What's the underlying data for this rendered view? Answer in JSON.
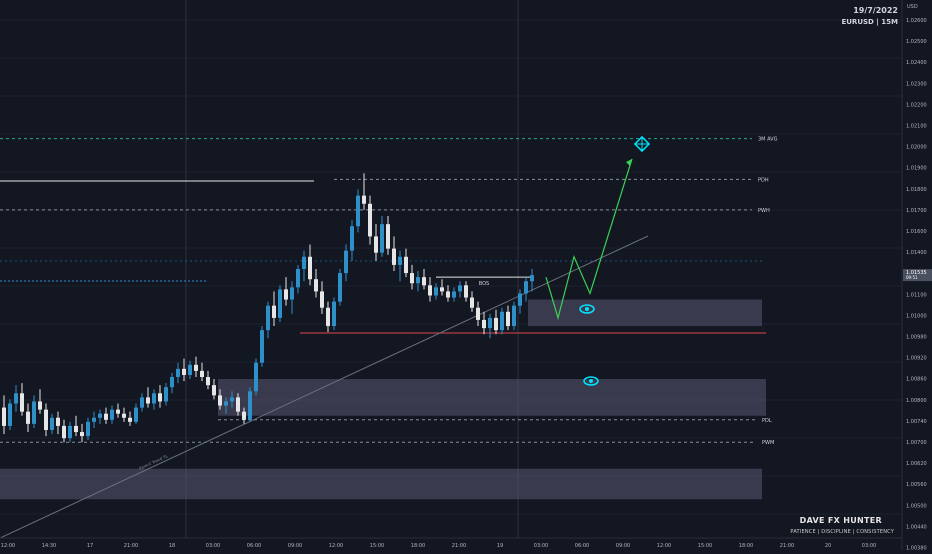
{
  "header": {
    "date": "19/7/2022",
    "symbol_line": "EURUSD | 15M"
  },
  "branding": {
    "name": "DAVE FX HUNTER",
    "tagline": "PATIENCE | DISCIPLINE | CONSISTENCY"
  },
  "colors": {
    "background": "#131722",
    "bull_candle": "#2f8fc9",
    "bear_candle": "#e6e6e6",
    "zone_fill": "#5b5875",
    "projection_line": "#39d353",
    "level_line": "#8a8f9c",
    "cyan_level": "#26a69a",
    "red_level": "#e0454a",
    "eye_icon": "#00e5ff",
    "target_icon": "#00e5ff"
  },
  "icons": {
    "zone_marker": "eye-icon",
    "target_marker": "crosshair-icon"
  },
  "chart_data": {
    "type": "candlestick",
    "symbol": "EURUSD",
    "timeframe": "15M",
    "y_axis_label": "USD",
    "y_range": [
      1.0024,
      1.0288
    ],
    "y_ticks": [
      "1.02600",
      "1.02500",
      "1.02400",
      "1.02300",
      "1.02200",
      "1.02100",
      "1.02000",
      "1.01900",
      "1.01800",
      "1.01700",
      "1.01600",
      "1.01400",
      "1.01300",
      "1.01100",
      "1.01000",
      "1.00980",
      "1.00920",
      "1.00860",
      "1.00800",
      "1.00740",
      "1.00700",
      "1.00620",
      "1.00560",
      "1.00500",
      "1.00440",
      "1.00380",
      "1.00260"
    ],
    "x_ticks": [
      "12:00",
      "14:30",
      "17",
      "21:00",
      "18",
      "03:00",
      "06:00",
      "09:00",
      "12:00",
      "15:00",
      "18:00",
      "21:00",
      "19",
      "03:00",
      "06:00",
      "09:00",
      "12:00",
      "15:00",
      "18:00",
      "21:00",
      "20",
      "03:00"
    ],
    "current_price": {
      "value": "1.01535",
      "countdown": "09:51"
    },
    "candles_ohlc": [
      [
        1.0088,
        1.0094,
        1.0075,
        1.0079
      ],
      [
        1.0079,
        1.0092,
        1.0077,
        1.009
      ],
      [
        1.009,
        1.0099,
        1.0086,
        1.0095
      ],
      [
        1.0095,
        1.01,
        1.0084,
        1.0086
      ],
      [
        1.0086,
        1.009,
        1.0076,
        1.008
      ],
      [
        1.008,
        1.0094,
        1.0078,
        1.0091
      ],
      [
        1.0091,
        1.0097,
        1.0085,
        1.0087
      ],
      [
        1.0087,
        1.009,
        1.0074,
        1.0077
      ],
      [
        1.0077,
        1.0085,
        1.0075,
        1.0083
      ],
      [
        1.0083,
        1.0086,
        1.0075,
        1.0079
      ],
      [
        1.0079,
        1.0082,
        1.0071,
        1.0073
      ],
      [
        1.0073,
        1.0081,
        1.0071,
        1.0079
      ],
      [
        1.0079,
        1.0084,
        1.0074,
        1.0076
      ],
      [
        1.0076,
        1.008,
        1.0071,
        1.0074
      ],
      [
        1.0074,
        1.0083,
        1.0072,
        1.0081
      ],
      [
        1.0081,
        1.0086,
        1.0078,
        1.0083
      ],
      [
        1.0083,
        1.0087,
        1.008,
        1.0085
      ],
      [
        1.0085,
        1.0088,
        1.008,
        1.0082
      ],
      [
        1.0082,
        1.0089,
        1.008,
        1.0087
      ],
      [
        1.0087,
        1.009,
        1.0083,
        1.0085
      ],
      [
        1.0085,
        1.0088,
        1.0081,
        1.0083
      ],
      [
        1.0083,
        1.0086,
        1.0079,
        1.0081
      ],
      [
        1.0081,
        1.009,
        1.008,
        1.0088
      ],
      [
        1.0088,
        1.0095,
        1.0086,
        1.0093
      ],
      [
        1.0093,
        1.0098,
        1.0088,
        1.009
      ],
      [
        1.009,
        1.0097,
        1.0087,
        1.0095
      ],
      [
        1.0095,
        1.0099,
        1.0088,
        1.0091
      ],
      [
        1.0091,
        1.01,
        1.0089,
        1.0098
      ],
      [
        1.0098,
        1.0105,
        1.0095,
        1.0103
      ],
      [
        1.0103,
        1.011,
        1.01,
        1.0107
      ],
      [
        1.0107,
        1.0112,
        1.0101,
        1.0104
      ],
      [
        1.0104,
        1.0111,
        1.0102,
        1.0109
      ],
      [
        1.0109,
        1.0113,
        1.0103,
        1.0106
      ],
      [
        1.0106,
        1.011,
        1.0101,
        1.0103
      ],
      [
        1.0103,
        1.0106,
        1.0097,
        1.0099
      ],
      [
        1.0099,
        1.0102,
        1.0092,
        1.0094
      ],
      [
        1.0094,
        1.0097,
        1.0087,
        1.0089
      ],
      [
        1.0089,
        1.0093,
        1.0085,
        1.0091
      ],
      [
        1.0091,
        1.0096,
        1.0088,
        1.0093
      ],
      [
        1.0093,
        1.0095,
        1.0084,
        1.0086
      ],
      [
        1.0086,
        1.0088,
        1.008,
        1.0082
      ],
      [
        1.0082,
        1.0098,
        1.0081,
        1.0096
      ],
      [
        1.0096,
        1.0112,
        1.0094,
        1.011
      ],
      [
        1.011,
        1.0128,
        1.0108,
        1.0126
      ],
      [
        1.0126,
        1.014,
        1.0122,
        1.0138
      ],
      [
        1.0138,
        1.0145,
        1.0128,
        1.0132
      ],
      [
        1.0132,
        1.0148,
        1.013,
        1.0146
      ],
      [
        1.0146,
        1.0152,
        1.0138,
        1.0141
      ],
      [
        1.0141,
        1.015,
        1.0134,
        1.0147
      ],
      [
        1.0147,
        1.0158,
        1.0144,
        1.0156
      ],
      [
        1.0156,
        1.0165,
        1.015,
        1.0162
      ],
      [
        1.0162,
        1.0168,
        1.0148,
        1.0151
      ],
      [
        1.0151,
        1.0156,
        1.0142,
        1.0145
      ],
      [
        1.0145,
        1.015,
        1.0134,
        1.0137
      ],
      [
        1.0137,
        1.014,
        1.0125,
        1.0128
      ],
      [
        1.0128,
        1.0142,
        1.0126,
        1.014
      ],
      [
        1.014,
        1.0156,
        1.0138,
        1.0154
      ],
      [
        1.0154,
        1.0168,
        1.015,
        1.0165
      ],
      [
        1.0165,
        1.018,
        1.016,
        1.0177
      ],
      [
        1.0177,
        1.0195,
        1.0174,
        1.0192
      ],
      [
        1.0192,
        1.0203,
        1.0185,
        1.0188
      ],
      [
        1.0188,
        1.0192,
        1.0168,
        1.0172
      ],
      [
        1.0172,
        1.0178,
        1.016,
        1.0164
      ],
      [
        1.0164,
        1.0182,
        1.0162,
        1.0178
      ],
      [
        1.0178,
        1.0182,
        1.0163,
        1.0166
      ],
      [
        1.0166,
        1.0172,
        1.0155,
        1.0158
      ],
      [
        1.0158,
        1.0165,
        1.015,
        1.0162
      ],
      [
        1.0162,
        1.0166,
        1.0152,
        1.0154
      ],
      [
        1.0154,
        1.0158,
        1.0146,
        1.0149
      ],
      [
        1.0149,
        1.0155,
        1.0145,
        1.0152
      ],
      [
        1.0152,
        1.0156,
        1.0146,
        1.0148
      ],
      [
        1.0148,
        1.0152,
        1.014,
        1.0143
      ],
      [
        1.0143,
        1.0149,
        1.0141,
        1.0147
      ],
      [
        1.0147,
        1.0151,
        1.0143,
        1.0145
      ],
      [
        1.0145,
        1.0148,
        1.014,
        1.0142
      ],
      [
        1.0142,
        1.0147,
        1.014,
        1.0145
      ],
      [
        1.0145,
        1.015,
        1.0142,
        1.0148
      ],
      [
        1.0148,
        1.015,
        1.014,
        1.0142
      ],
      [
        1.0142,
        1.0145,
        1.0135,
        1.0137
      ],
      [
        1.0137,
        1.014,
        1.0128,
        1.0131
      ],
      [
        1.0131,
        1.0135,
        1.0124,
        1.0127
      ],
      [
        1.0127,
        1.0134,
        1.0122,
        1.0132
      ],
      [
        1.0132,
        1.0136,
        1.0124,
        1.0126
      ],
      [
        1.0126,
        1.0137,
        1.0124,
        1.0135
      ],
      [
        1.0135,
        1.0138,
        1.0126,
        1.0128
      ],
      [
        1.0128,
        1.014,
        1.0126,
        1.0138
      ],
      [
        1.0138,
        1.0146,
        1.0134,
        1.0144
      ],
      [
        1.0144,
        1.0152,
        1.014,
        1.015
      ],
      [
        1.015,
        1.0156,
        1.0145,
        1.0153
      ]
    ],
    "levels": [
      {
        "label": "3M AVG",
        "value": 1.022,
        "style": "dashed",
        "color": "cyan"
      },
      {
        "label": "PDH",
        "value": 1.02,
        "style": "dashed",
        "color": "grey"
      },
      {
        "label": "PWH",
        "value": 1.0185,
        "style": "dashed",
        "color": "grey"
      },
      {
        "label": "BOS",
        "value": 1.0152,
        "style": "solid",
        "color": "white"
      },
      {
        "label": "PDL",
        "value": 1.0082,
        "style": "dashed",
        "color": "grey"
      },
      {
        "label": "PWM",
        "value": 1.0071,
        "style": "dashed",
        "color": "grey"
      }
    ],
    "zones": [
      {
        "name": "demand-zone-upper",
        "from": 1.0128,
        "to": 1.0141
      },
      {
        "name": "demand-zone-middle",
        "from": 1.0084,
        "to": 1.0102
      },
      {
        "name": "demand-zone-lower",
        "from": 1.0043,
        "to": 1.0058
      }
    ],
    "projection_path": [
      1.0152,
      1.0132,
      1.0162,
      1.0144,
      1.021
    ],
    "trendline_label": "Parent Trend TL",
    "grid": true
  }
}
